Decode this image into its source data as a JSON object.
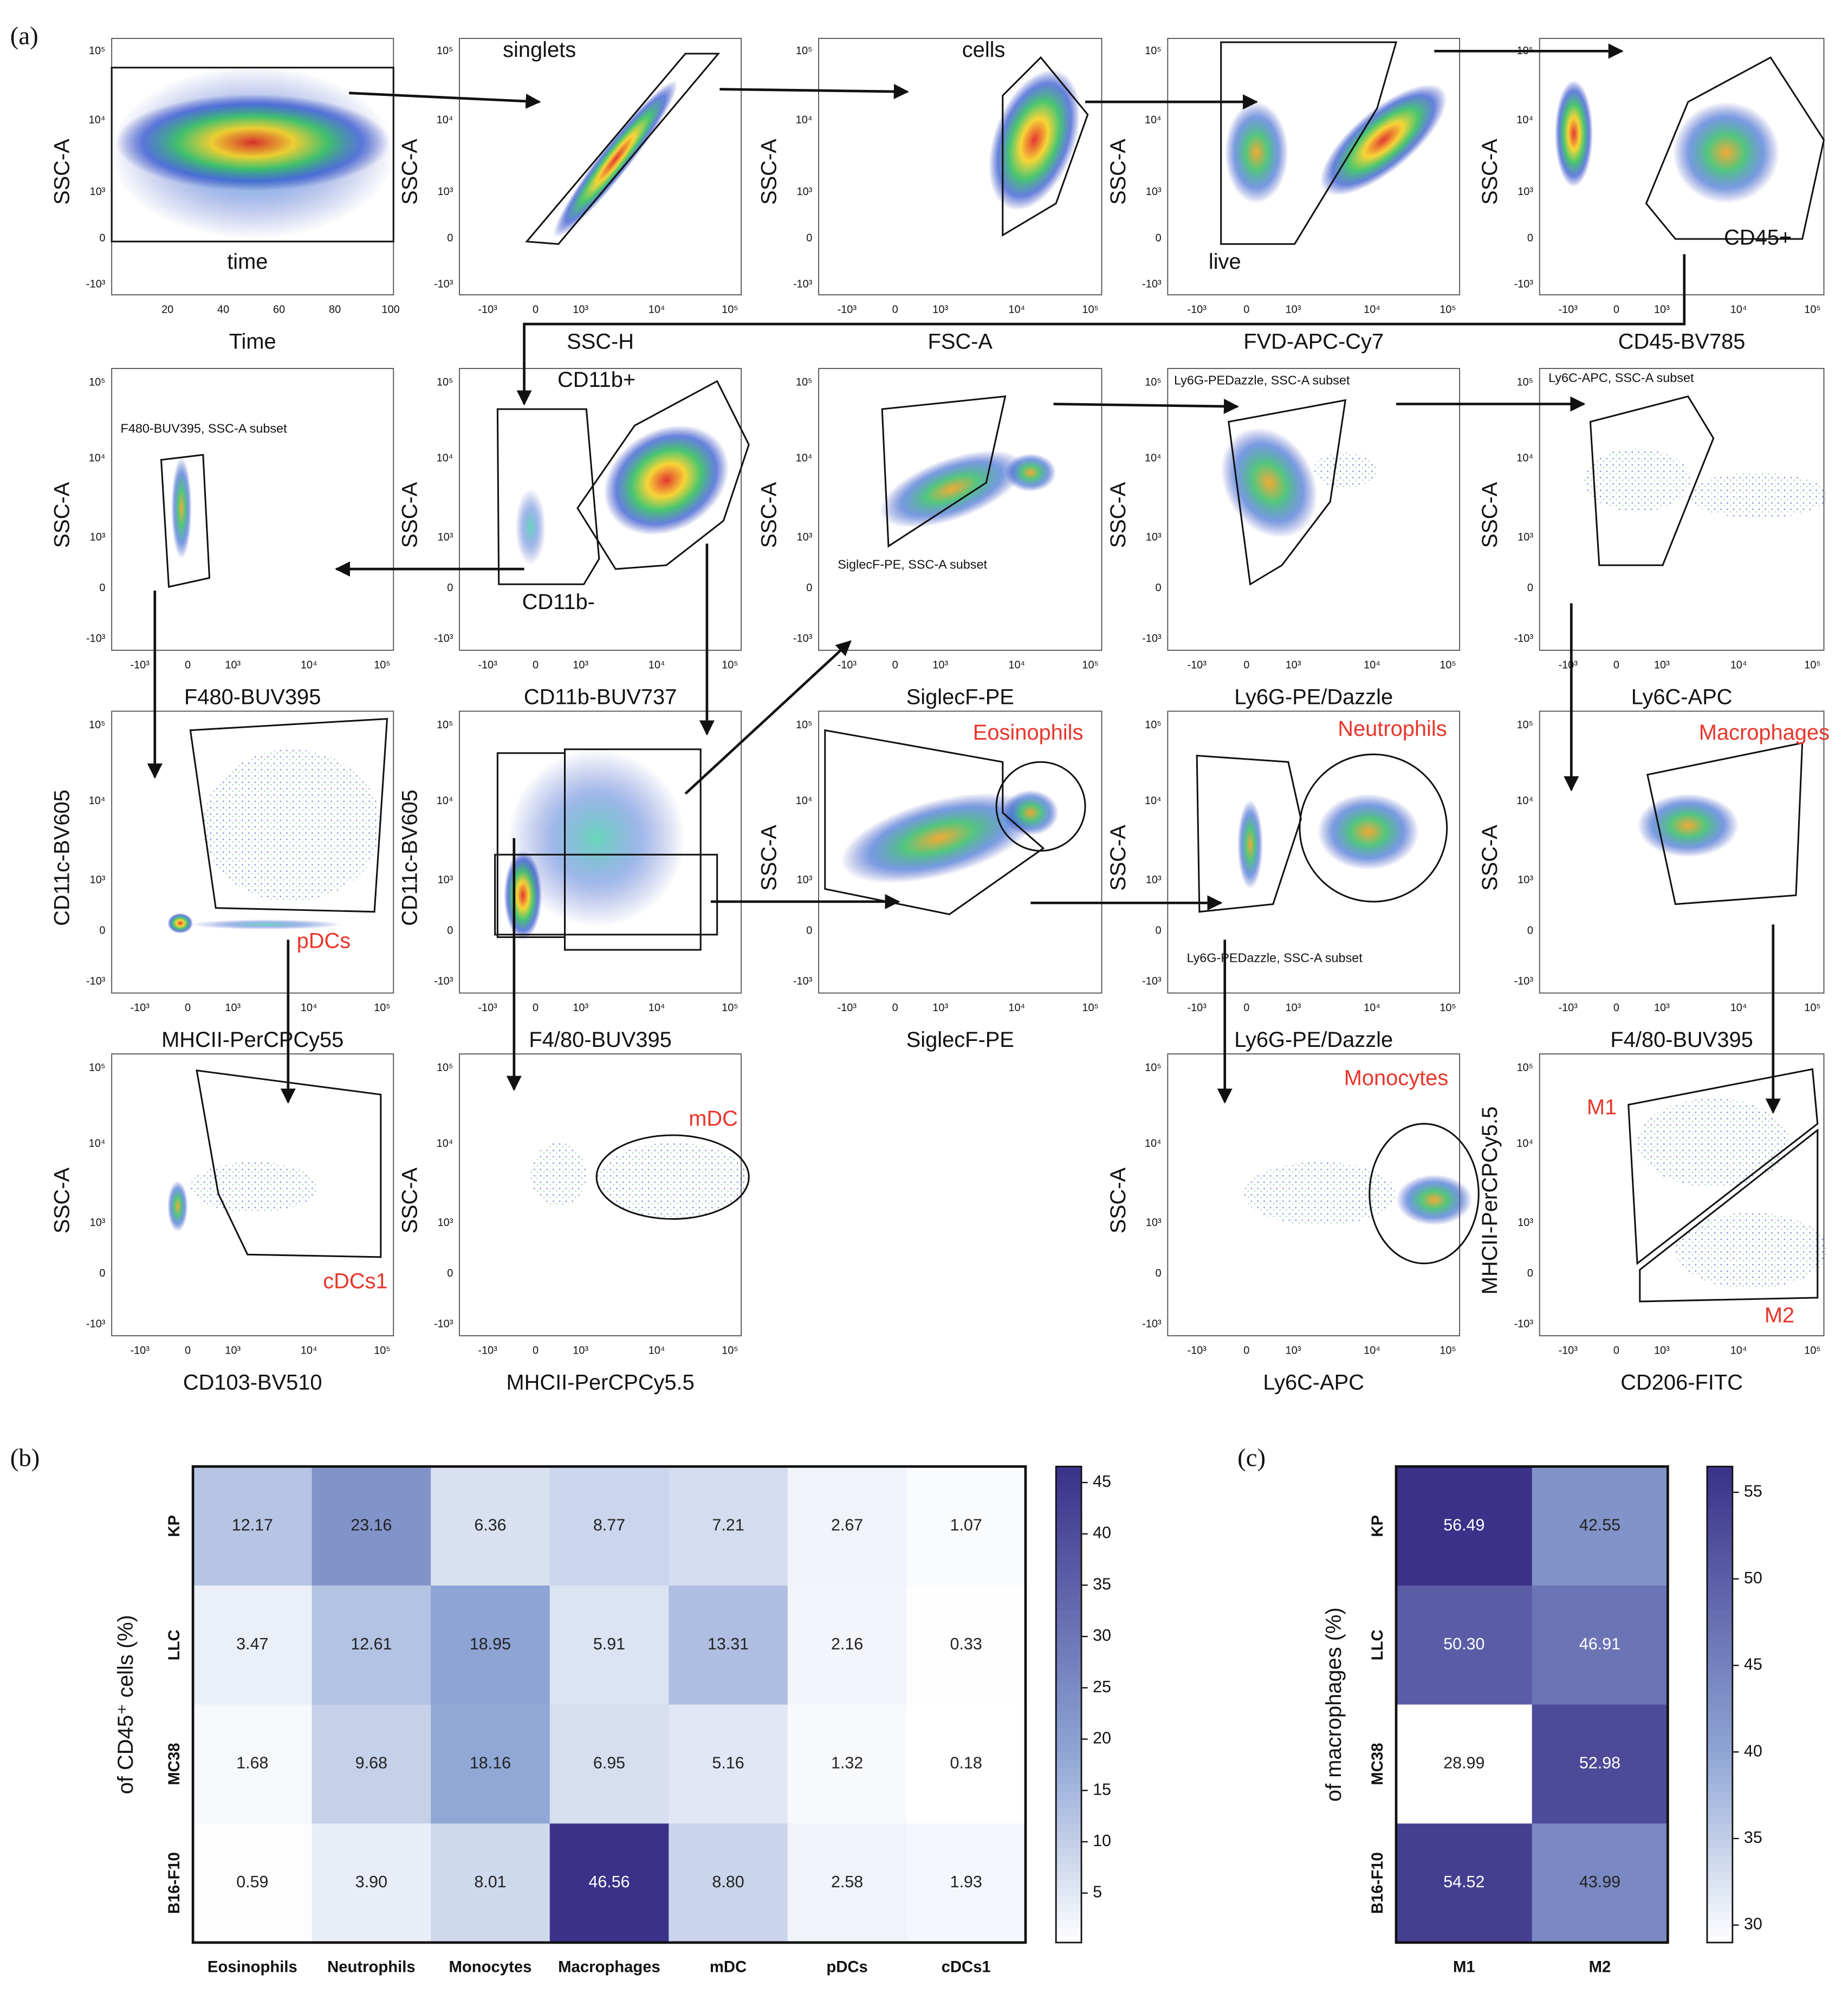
{
  "panel_labels": [
    "(a)",
    "(b)",
    "(c)"
  ],
  "gating": {
    "y_ticks": [
      "10⁵",
      "10⁴",
      "10³",
      "0",
      "-10³"
    ],
    "x_ticks": [
      "-10³",
      "0",
      "10³",
      "10⁴",
      "10⁵"
    ],
    "time_ticks": [
      20,
      40,
      60,
      80,
      100
    ],
    "panels": [
      {
        "x_label": "Time",
        "y_label": "SSC-A",
        "labels": [
          {
            "text": "time",
            "color": "#111111"
          }
        ]
      },
      {
        "x_label": "SSC-H",
        "y_label": "SSC-A",
        "labels": [
          {
            "text": "singlets",
            "color": "#111111"
          }
        ]
      },
      {
        "x_label": "FSC-A",
        "y_label": "SSC-A",
        "labels": [
          {
            "text": "cells",
            "color": "#111111"
          }
        ]
      },
      {
        "x_label": "FVD-APC-Cy7",
        "y_label": "SSC-A",
        "labels": [
          {
            "text": "live",
            "color": "#111111"
          }
        ]
      },
      {
        "x_label": "CD45-BV785",
        "y_label": "SSC-A",
        "labels": [
          {
            "text": "CD45+",
            "color": "#111111"
          }
        ]
      },
      {
        "x_label": "F480-BUV395",
        "y_label": "SSC-A",
        "labels": [],
        "subset": "F480-BUV395, SSC-A subset"
      },
      {
        "x_label": "CD11b-BUV737",
        "y_label": "SSC-A",
        "labels": [
          {
            "text": "CD11b+",
            "color": "#111111"
          },
          {
            "text": "CD11b-",
            "color": "#111111"
          }
        ]
      },
      {
        "x_label": "SiglecF-PE",
        "y_label": "SSC-A",
        "labels": [],
        "subset": "SiglecF-PE, SSC-A subset"
      },
      {
        "x_label": "Ly6G-PE/Dazzle",
        "y_label": "SSC-A",
        "labels": [],
        "subset": "Ly6G-PEDazzle, SSC-A subset"
      },
      {
        "x_label": "Ly6C-APC",
        "y_label": "SSC-A",
        "labels": [],
        "subset": "Ly6C-APC, SSC-A subset"
      },
      {
        "x_label": "MHCII-PerCPCy55",
        "y_label": "CD11c-BV605",
        "labels": [
          {
            "text": "pDCs",
            "color": "#e8352b"
          }
        ]
      },
      {
        "x_label": "F4/80-BUV395",
        "y_label": "CD11c-BV605",
        "labels": []
      },
      {
        "x_label": "SiglecF-PE",
        "y_label": "SSC-A",
        "labels": [
          {
            "text": "Eosinophils",
            "color": "#e8352b"
          }
        ]
      },
      {
        "x_label": "Ly6G-PE/Dazzle",
        "y_label": "SSC-A",
        "labels": [
          {
            "text": "Neutrophils",
            "color": "#e8352b"
          }
        ],
        "subset": "Ly6G-PEDazzle, SSC-A subset"
      },
      {
        "x_label": "F4/80-BUV395",
        "y_label": "SSC-A",
        "labels": [
          {
            "text": "Macrophages",
            "color": "#e8352b"
          }
        ]
      },
      {
        "x_label": "CD103-BV510",
        "y_label": "SSC-A",
        "labels": [
          {
            "text": "cDCs1",
            "color": "#e8352b"
          }
        ]
      },
      {
        "x_label": "MHCII-PerCPCy5.5",
        "y_label": "SSC-A",
        "labels": [
          {
            "text": "mDC",
            "color": "#e8352b"
          }
        ]
      },
      {
        "x_label": "Ly6C-APC",
        "y_label": "SSC-A",
        "labels": [
          {
            "text": "Monocytes",
            "color": "#e8352b"
          }
        ]
      },
      {
        "x_label": "CD206-FITC",
        "y_label": "MHCII-PerCPCy5.5",
        "labels": [
          {
            "text": "M1",
            "color": "#e8352b"
          },
          {
            "text": "M2",
            "color": "#e8352b"
          }
        ]
      }
    ]
  },
  "chart_data": [
    {
      "type": "heatmap",
      "y_label": "of CD45⁺ cells (%)",
      "categories": [
        "Eosinophils",
        "Neutrophils",
        "Monocytes",
        "Macrophages",
        "mDC",
        "pDCs",
        "cDCs1"
      ],
      "rows": [
        "KP",
        "LLC",
        "MC38",
        "B16-F10"
      ],
      "values": [
        [
          12.17,
          23.16,
          6.36,
          8.77,
          7.21,
          2.67,
          1.07
        ],
        [
          3.47,
          12.61,
          18.95,
          5.91,
          13.31,
          2.16,
          0.33
        ],
        [
          1.68,
          9.68,
          18.16,
          6.95,
          5.16,
          1.32,
          0.18
        ],
        [
          0.59,
          3.9,
          8.01,
          46.56,
          8.8,
          2.58,
          1.93
        ]
      ],
      "value_labels": [
        [
          "12.17",
          "23.16",
          "6.36",
          "8.77",
          "7.21",
          "2.67",
          "1.07"
        ],
        [
          "3.47",
          "12.61",
          "18.95",
          "5.91",
          "13.31",
          "2.16",
          "0.33"
        ],
        [
          "1.68",
          "9.68",
          "18.16",
          "6.95",
          "5.16",
          "1.32",
          "0.18"
        ],
        [
          "0.59",
          "3.90",
          "8.01",
          "46.56",
          "8.80",
          "2.58",
          "1.93"
        ]
      ],
      "clim": [
        0.18,
        46.56
      ],
      "cticks": [
        5,
        10,
        15,
        20,
        25,
        30,
        35,
        40,
        45
      ],
      "colors": [
        "#ffffff",
        "#8ea5d5",
        "#3b3189"
      ]
    },
    {
      "type": "heatmap",
      "y_label": "of macrophages (%)",
      "categories": [
        "M1",
        "M2"
      ],
      "rows": [
        "KP",
        "LLC",
        "MC38",
        "B16-F10"
      ],
      "values": [
        [
          56.49,
          42.55
        ],
        [
          50.3,
          46.91
        ],
        [
          28.99,
          52.98
        ],
        [
          54.52,
          43.99
        ]
      ],
      "value_labels": [
        [
          "56.49",
          "42.55"
        ],
        [
          "50.30",
          "46.91"
        ],
        [
          "28.99",
          "52.98"
        ],
        [
          "54.52",
          "43.99"
        ]
      ],
      "clim": [
        28.99,
        56.49
      ],
      "cticks": [
        30,
        35,
        40,
        45,
        50,
        55
      ],
      "colors": [
        "#ffffff",
        "#8ea5d5",
        "#3b3189"
      ]
    }
  ]
}
